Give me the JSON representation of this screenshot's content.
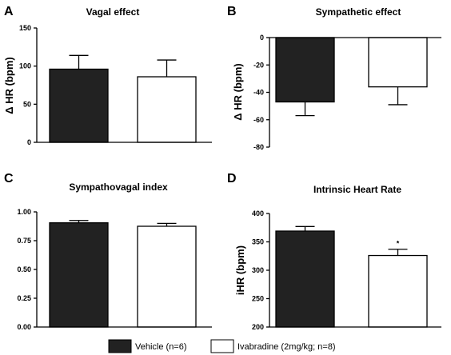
{
  "chart_data": [
    {
      "type": "bar",
      "panel_letter": "A",
      "title": "Vagal effect",
      "ylabel": "Δ HR (bpm)",
      "categories": [
        "Vehicle (n=6)",
        "Ivabradine (2mg/kg; n=8)"
      ],
      "values": [
        96,
        86
      ],
      "errors": [
        18,
        22
      ],
      "ylim": [
        0,
        150
      ],
      "yticks": [
        0,
        50,
        100,
        150
      ],
      "ytick_labels": [
        "0",
        "50",
        "100",
        "150"
      ],
      "annotations": [
        "",
        ""
      ],
      "grid": false
    },
    {
      "type": "bar",
      "panel_letter": "B",
      "title": "Sympathetic effect",
      "ylabel": "Δ HR (bpm)",
      "categories": [
        "Vehicle (n=6)",
        "Ivabradine (2mg/kg; n=8)"
      ],
      "values": [
        -47,
        -36
      ],
      "errors": [
        10,
        13
      ],
      "ylim": [
        -80,
        0
      ],
      "yticks": [
        -80,
        -60,
        -40,
        -20,
        0
      ],
      "ytick_labels": [
        "-80",
        "-60",
        "-40",
        "-20",
        "0"
      ],
      "annotations": [
        "",
        ""
      ],
      "grid": false
    },
    {
      "type": "bar",
      "panel_letter": "C",
      "title": "Sympathovagal index",
      "ylabel": "",
      "categories": [
        "Vehicle (n=6)",
        "Ivabradine (2mg/kg; n=8)"
      ],
      "values": [
        0.905,
        0.875
      ],
      "errors": [
        0.02,
        0.025
      ],
      "ylim": [
        0,
        1.0
      ],
      "yticks": [
        0,
        0.25,
        0.5,
        0.75,
        1.0
      ],
      "ytick_labels": [
        "0.00",
        "0.25",
        "0.50",
        "0.75",
        "1.00"
      ],
      "annotations": [
        "",
        ""
      ],
      "grid": false
    },
    {
      "type": "bar",
      "panel_letter": "D",
      "title": "Intrinsic Heart Rate",
      "ylabel": "iHR (bpm)",
      "categories": [
        "Vehicle (n=6)",
        "Ivabradine (2mg/kg; n=8)"
      ],
      "values": [
        369,
        326
      ],
      "errors": [
        8,
        11
      ],
      "ylim": [
        200,
        400
      ],
      "yticks": [
        200,
        250,
        300,
        350,
        400
      ],
      "ytick_labels": [
        "200",
        "250",
        "300",
        "350",
        "400"
      ],
      "annotations": [
        "",
        "*"
      ],
      "grid": false
    }
  ],
  "legend": {
    "placement": "bottom-center",
    "items": [
      {
        "label": "Vehicle (n=6)",
        "color": "#222222"
      },
      {
        "label": "Ivabradine (2mg/kg; n=8)",
        "color": "#ffffff"
      }
    ]
  },
  "colors": {
    "vehicle": "#222222",
    "ivabradine": "#ffffff",
    "axis": "#000000"
  }
}
